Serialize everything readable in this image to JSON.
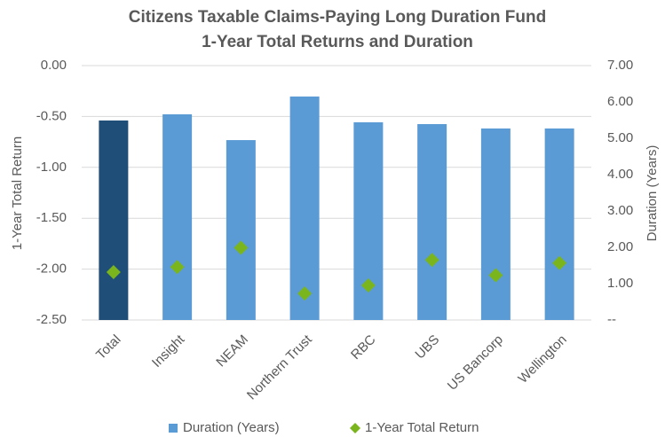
{
  "chart_data": {
    "type": "bar",
    "title": "Citizens Taxable Claims-Paying Long Duration Fund",
    "subtitle": "1-Year Total Returns and Duration",
    "y_label": "1-Year Total Return",
    "y2_label": "Duration (Years)",
    "categories": [
      "Total",
      "Insight",
      "NEAM",
      "Northern Trust",
      "RBC",
      "UBS",
      "US Bancorp",
      "Wellington"
    ],
    "series": [
      {
        "name": "Duration (Years)",
        "type": "bar",
        "axis": "y2",
        "color": "#5b9bd5",
        "colors": [
          "#1f4e79",
          "#5b9bd5",
          "#5b9bd5",
          "#5b9bd5",
          "#5b9bd5",
          "#5b9bd5",
          "#5b9bd5",
          "#5b9bd5"
        ],
        "values": [
          5.49,
          5.66,
          4.95,
          6.15,
          5.44,
          5.39,
          5.27,
          5.27
        ]
      },
      {
        "name": "1-Year Total Return",
        "type": "scatter",
        "axis": "y",
        "color": "#7ab51d",
        "values": [
          -2.03,
          -1.98,
          -1.79,
          -2.24,
          -2.16,
          -1.91,
          -2.06,
          -1.94
        ]
      }
    ],
    "ylim": [
      -2.5,
      0
    ],
    "yticks": [
      {
        "value": 0,
        "label": "0.00"
      },
      {
        "value": -0.5,
        "label": "-0.50"
      },
      {
        "value": -1,
        "label": "-1.00"
      },
      {
        "value": -1.5,
        "label": "-1.50"
      },
      {
        "value": -2,
        "label": "-2.00"
      },
      {
        "value": -2.5,
        "label": "-2.50"
      }
    ],
    "y2lim": [
      0,
      7
    ],
    "y2ticks": [
      {
        "value": 7,
        "label": "7.00"
      },
      {
        "value": 6,
        "label": "6.00"
      },
      {
        "value": 5,
        "label": "5.00"
      },
      {
        "value": 4,
        "label": "4.00"
      },
      {
        "value": 3,
        "label": "3.00"
      },
      {
        "value": 2,
        "label": "2.00"
      },
      {
        "value": 1,
        "label": "1.00"
      },
      {
        "value": 0,
        "label": "--"
      }
    ],
    "grid": true,
    "legend": "bottom"
  }
}
